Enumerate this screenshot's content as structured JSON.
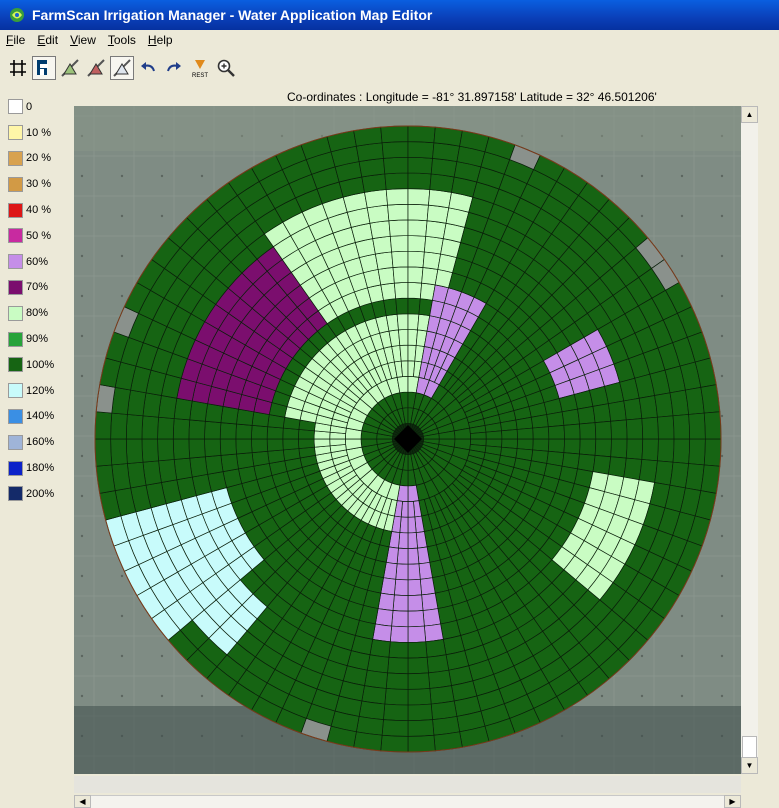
{
  "window": {
    "title": "FarmScan Irrigation Manager - Water Application Map Editor"
  },
  "menu": [
    "File",
    "Edit",
    "View",
    "Tools",
    "Help"
  ],
  "toolbar": {
    "buttons": [
      {
        "name": "grid-icon",
        "pressed": false
      },
      {
        "name": "select-sector-icon",
        "pressed": true
      },
      {
        "name": "draw-zone-icon",
        "pressed": false
      },
      {
        "name": "draw-zone-alt-icon",
        "pressed": false
      },
      {
        "name": "erase-zone-icon",
        "pressed": true
      },
      {
        "name": "undo-icon",
        "pressed": false
      },
      {
        "name": "redo-icon",
        "pressed": false
      },
      {
        "name": "reset-icon",
        "pressed": false,
        "label": "REST"
      },
      {
        "name": "zoom-icon",
        "pressed": false
      }
    ]
  },
  "coordinates": "Co-ordinates : Longitude = -81° 31.897158'  Latitude = 32° 46.501206'",
  "legend": [
    {
      "label": "0",
      "color": "#ffffff"
    },
    {
      "label": "10 %",
      "color": "#fff6a8"
    },
    {
      "label": "20 %",
      "color": "#d8a24f"
    },
    {
      "label": "30 %",
      "color": "#d29a45"
    },
    {
      "label": "40 %",
      "color": "#dd1616"
    },
    {
      "label": "50 %",
      "color": "#c82aa0"
    },
    {
      "label": "60%",
      "color": "#c58ee8"
    },
    {
      "label": "70%",
      "color": "#7b0e6e"
    },
    {
      "label": "80%",
      "color": "#c9fcc3"
    },
    {
      "label": "90%",
      "color": "#27a33a"
    },
    {
      "label": "100%",
      "color": "#166413"
    },
    {
      "label": "120%",
      "color": "#c8fbfb"
    },
    {
      "label": "140%",
      "color": "#3a8fe4"
    },
    {
      "label": "160%",
      "color": "#9fb4d8"
    },
    {
      "label": "180%",
      "color": "#0c22c9"
    },
    {
      "label": "200%",
      "color": "#142a69"
    }
  ],
  "map": {
    "base_color": "#166413",
    "zones": [
      {
        "name": "70%",
        "color": "#7b0e6e"
      },
      {
        "name": "80%",
        "color": "#c9fcc3"
      },
      {
        "name": "60%",
        "color": "#c58ee8"
      },
      {
        "name": "120%",
        "color": "#c8fbfb"
      }
    ]
  }
}
